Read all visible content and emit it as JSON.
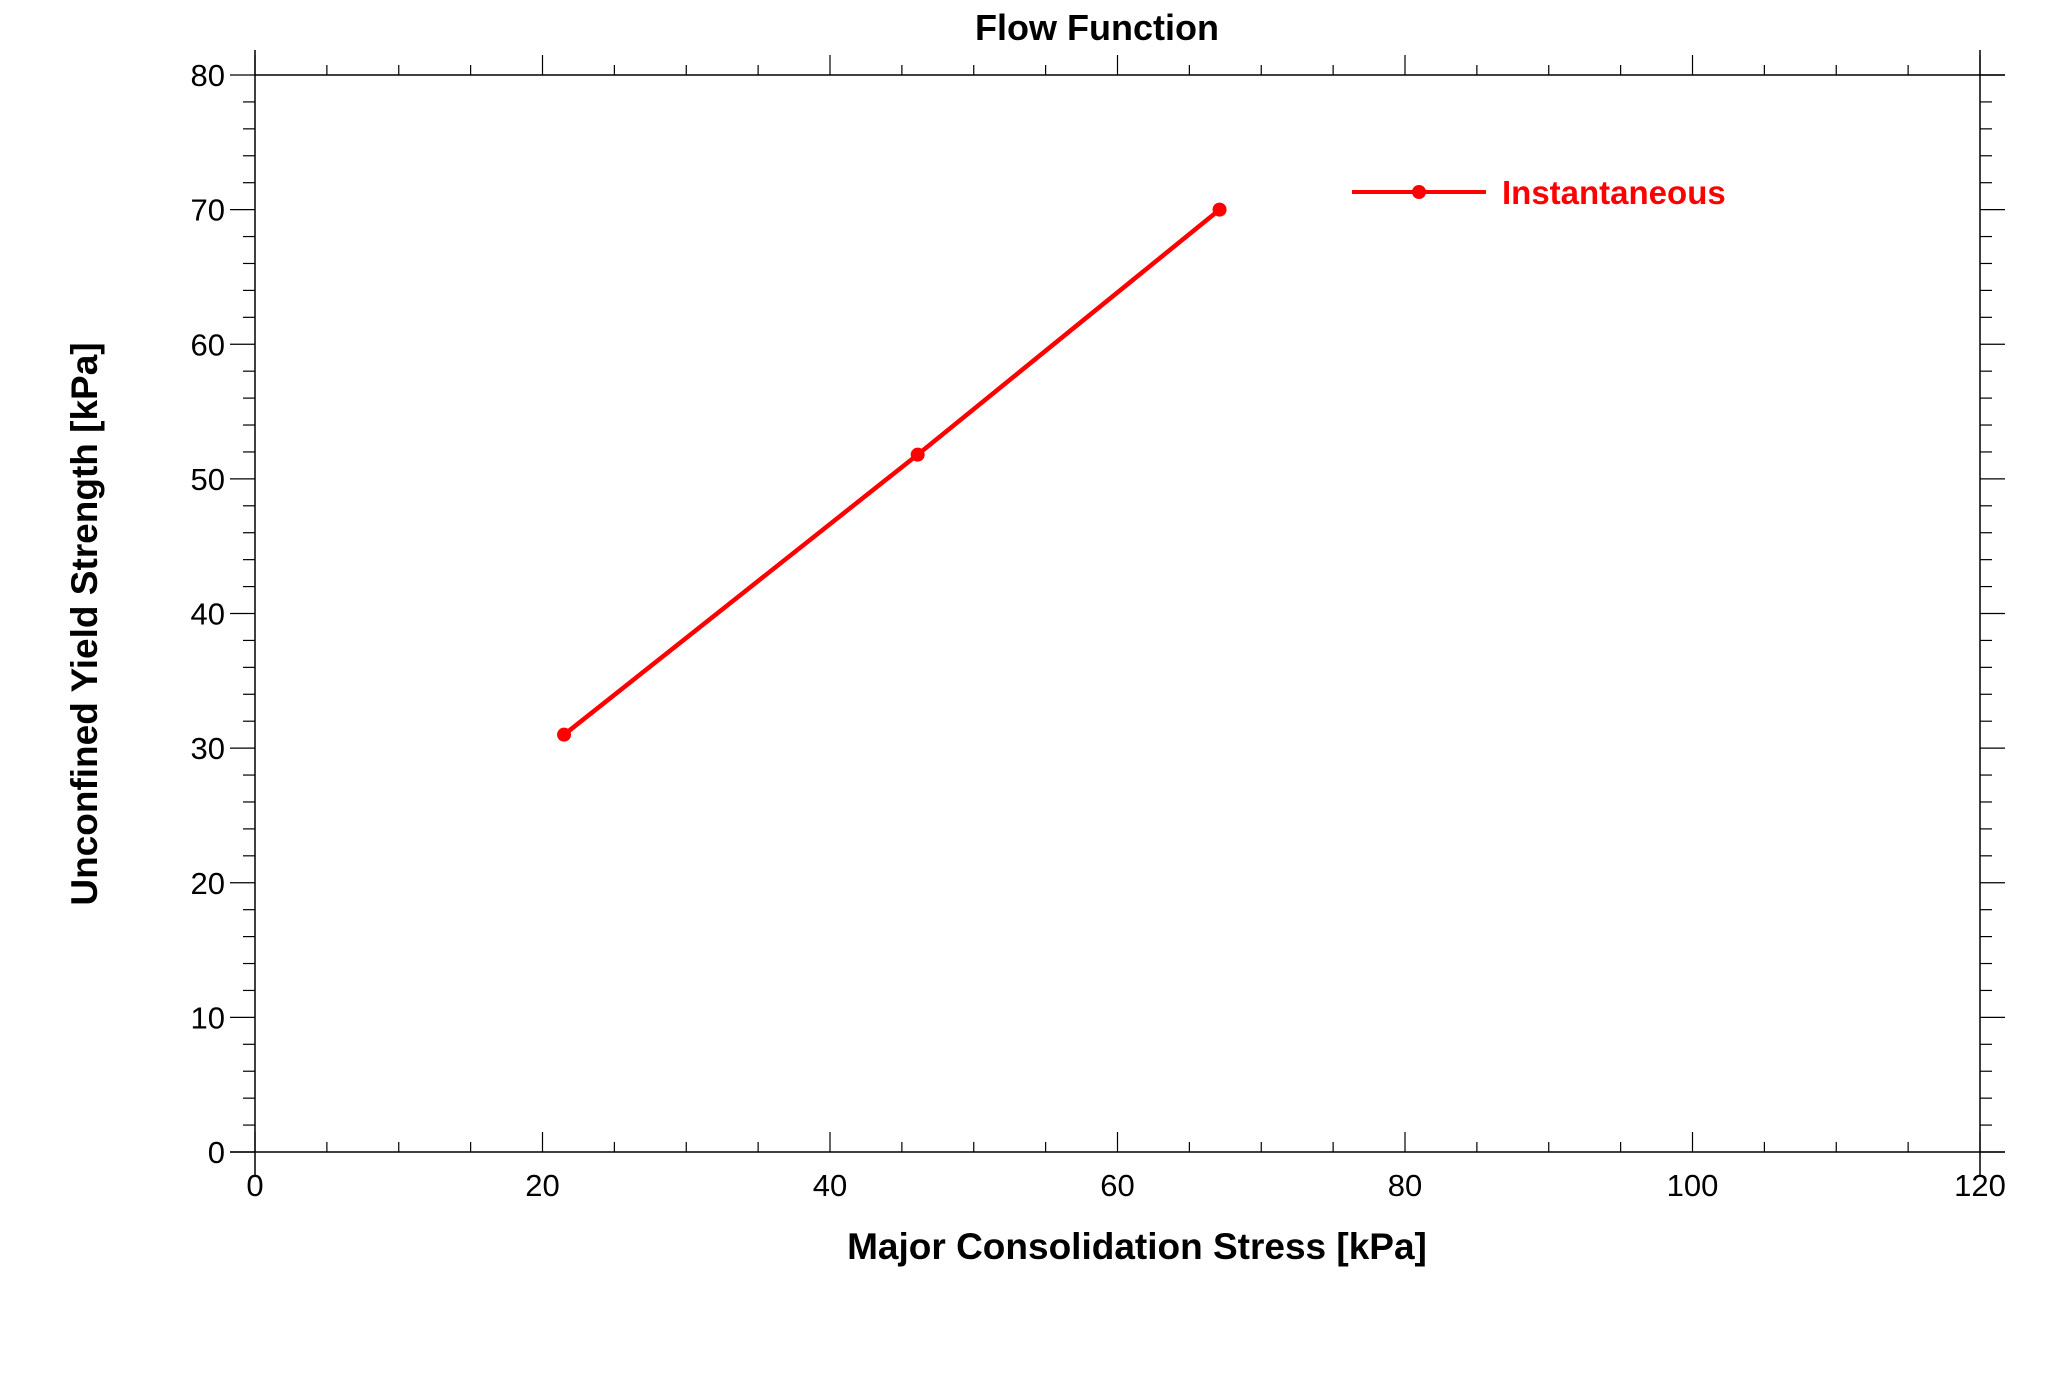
{
  "chart_data": {
    "type": "line",
    "title": "Flow Function",
    "xlabel": "Major Consolidation Stress [kPa]",
    "ylabel": "Unconfined Yield Strength [kPa]",
    "xlim": [
      0,
      120
    ],
    "ylim": [
      0,
      80
    ],
    "x_ticks": [
      0,
      20,
      40,
      60,
      80,
      100,
      120
    ],
    "x_tick_labels": [
      "0",
      "20",
      "40",
      "60",
      "80",
      "100",
      "120"
    ],
    "y_ticks": [
      0,
      10,
      20,
      30,
      40,
      50,
      60,
      70,
      80
    ],
    "y_tick_labels": [
      "0",
      "10",
      "20",
      "30",
      "40",
      "50",
      "60",
      "70",
      "80"
    ],
    "grid": false,
    "legend_position": "top-right",
    "series": [
      {
        "name": "Instantaneous",
        "color": "#ff0000",
        "marker": "circle",
        "x": [
          21.5,
          46.1,
          67.1
        ],
        "y": [
          31.0,
          51.8,
          70.0
        ]
      }
    ]
  }
}
